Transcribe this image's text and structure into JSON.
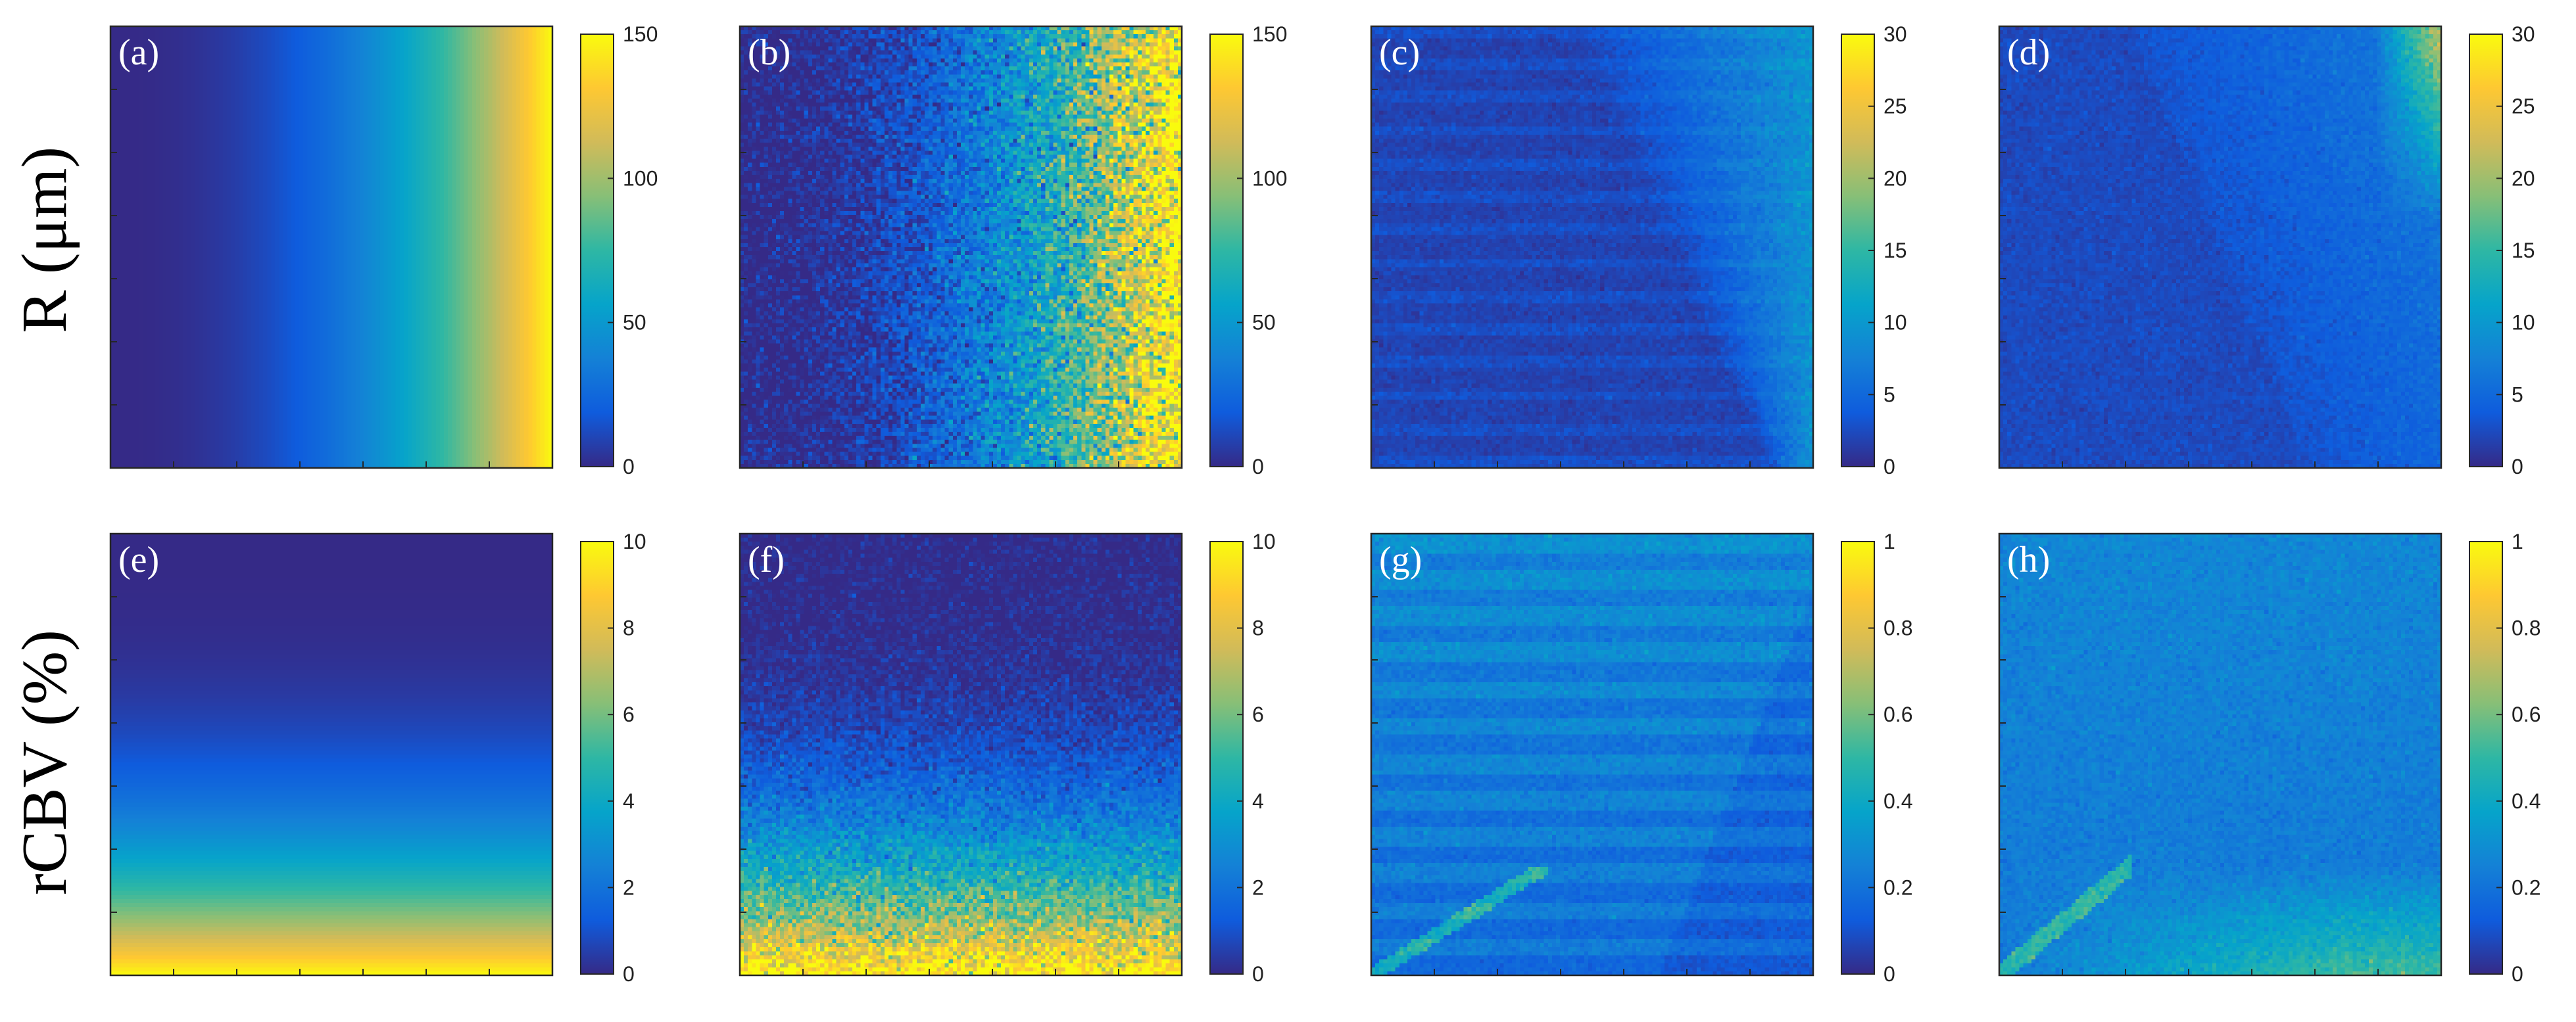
{
  "row_labels": [
    "R (μm)",
    "rCBV (%)"
  ],
  "colormap": "parula",
  "colormap_stops": [
    "#352a87",
    "#0f5cdd",
    "#1481d6",
    "#06a4ca",
    "#2eb7a4",
    "#87bf77",
    "#d1bb59",
    "#fec832",
    "#f9fb0e"
  ],
  "chart_data": [
    {
      "type": "heatmap",
      "panel": "(a)",
      "pattern": "horizontal-gradient",
      "noise": 0,
      "clim": [
        0,
        150
      ],
      "colorbar_ticks": [
        "0",
        "50",
        "100",
        "150"
      ]
    },
    {
      "type": "heatmap",
      "panel": "(b)",
      "pattern": "horizontal-gradient",
      "noise": 0.18,
      "clim": [
        0,
        150
      ],
      "colorbar_ticks": [
        "0",
        "50",
        "100",
        "150"
      ]
    },
    {
      "type": "heatmap",
      "panel": "(c)",
      "pattern": "diagonal-error",
      "noise": 0.05,
      "clim": [
        0,
        30
      ],
      "colorbar_ticks": [
        "0",
        "5",
        "10",
        "15",
        "20",
        "25",
        "30"
      ]
    },
    {
      "type": "heatmap",
      "panel": "(d)",
      "pattern": "diagonal-error-smooth",
      "noise": 0.05,
      "clim": [
        0,
        30
      ],
      "colorbar_ticks": [
        "0",
        "5",
        "10",
        "15",
        "20",
        "25",
        "30"
      ]
    },
    {
      "type": "heatmap",
      "panel": "(e)",
      "pattern": "vertical-gradient",
      "noise": 0,
      "clim": [
        0,
        10
      ],
      "colorbar_ticks": [
        "0",
        "2",
        "4",
        "6",
        "8",
        "10"
      ]
    },
    {
      "type": "heatmap",
      "panel": "(f)",
      "pattern": "vertical-gradient",
      "noise": 0.12,
      "clim": [
        0,
        10
      ],
      "colorbar_ticks": [
        "0",
        "2",
        "4",
        "6",
        "8",
        "10"
      ]
    },
    {
      "type": "heatmap",
      "panel": "(g)",
      "pattern": "striped-error",
      "noise": 0.05,
      "clim": [
        0,
        1
      ],
      "colorbar_ticks": [
        "0",
        "0.2",
        "0.4",
        "0.6",
        "0.8",
        "1"
      ]
    },
    {
      "type": "heatmap",
      "panel": "(h)",
      "pattern": "smooth-error",
      "noise": 0.05,
      "clim": [
        0,
        1
      ],
      "colorbar_ticks": [
        "0",
        "0.2",
        "0.4",
        "0.6",
        "0.8",
        "1"
      ]
    }
  ]
}
